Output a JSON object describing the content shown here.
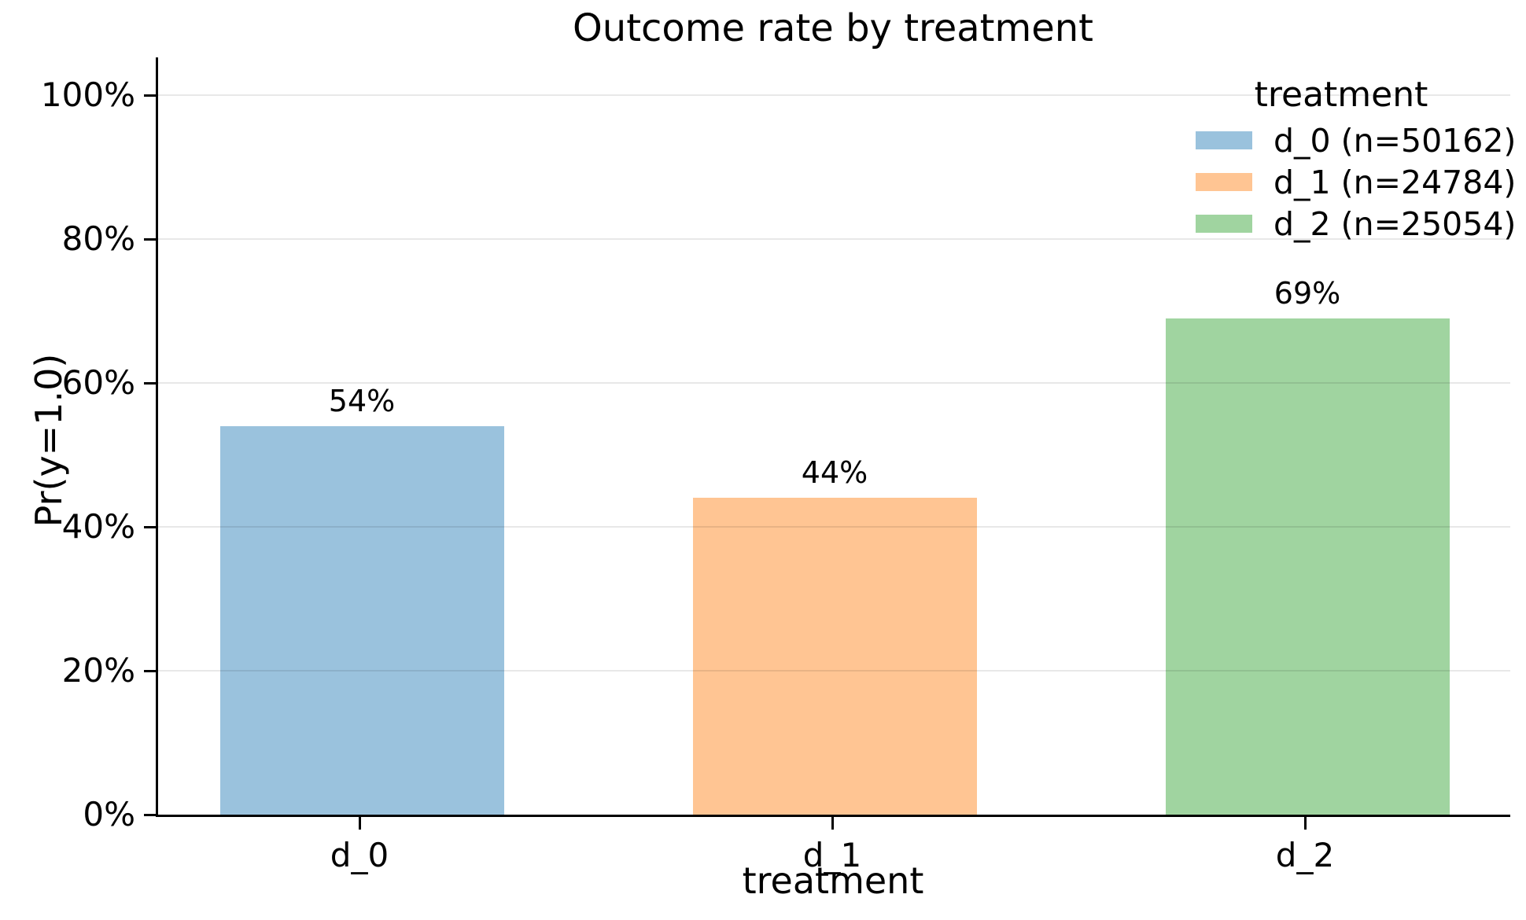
{
  "chart_data": {
    "type": "bar",
    "title": "Outcome rate by treatment",
    "xlabel": "treatment",
    "ylabel": "Pr(y=1.0)",
    "categories": [
      "d_0",
      "d_1",
      "d_2"
    ],
    "values": [
      54,
      44,
      69
    ],
    "value_labels": [
      "54%",
      "44%",
      "69%"
    ],
    "bar_colors": [
      "#9ac2dd",
      "#ffc593",
      "#a0d4a0"
    ],
    "ylim": [
      0,
      100
    ],
    "ytick_values": [
      0,
      20,
      40,
      60,
      80,
      100
    ],
    "ytick_labels": [
      "0%",
      "20%",
      "40%",
      "60%",
      "80%",
      "100%"
    ],
    "grid": "horizontal",
    "grid_color": "rgba(0,0,0,0.09)",
    "axis_color": "#000000",
    "background_color": "#ffffff",
    "legend": {
      "title": "treatment",
      "position": "upper right",
      "entries": [
        {
          "label": "d_0 (n=50162)",
          "color": "#9ac2dd"
        },
        {
          "label": "d_1 (n=24784)",
          "color": "#ffc593"
        },
        {
          "label": "d_2 (n=25054)",
          "color": "#a0d4a0"
        }
      ]
    }
  }
}
